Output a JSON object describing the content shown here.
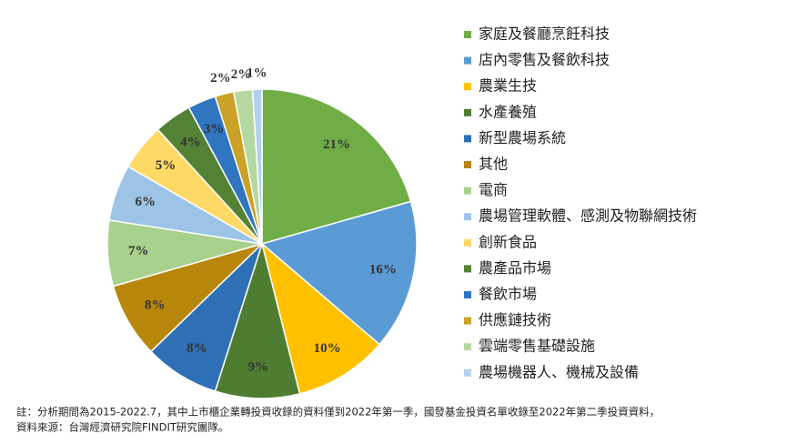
{
  "chart_data": {
    "type": "pie",
    "categories": [
      "家庭及餐廳烹飪科技",
      "店內零售及餐飲科技",
      "農業生技",
      "水產養殖",
      "新型農場系統",
      "其他",
      "電商",
      "農場管理軟體、感測及物聯網技術",
      "創新食品",
      "農產品市場",
      "餐飲市場",
      "供應鏈技術",
      "雲端零售基礎設施",
      "農場機器人、機械及設備"
    ],
    "values": [
      21,
      16,
      10,
      9,
      8,
      8,
      7,
      6,
      5,
      4,
      3,
      2,
      2,
      1
    ],
    "value_labels": [
      "21%",
      "16%",
      "10%",
      "9%",
      "8%",
      "8%",
      "7%",
      "6%",
      "5%",
      "4%",
      "3%",
      "2%",
      "2%",
      "1%"
    ],
    "colors": [
      "#70ad47",
      "#5b9bd5",
      "#ffc000",
      "#4e7d31",
      "#2e6fb5",
      "#b8860b",
      "#a9d18e",
      "#9dc3e6",
      "#ffd966",
      "#548235",
      "#2f75c0",
      "#c9a227",
      "#b5d8a0",
      "#b4d0ec"
    ],
    "legend": "right",
    "notes": [
      "註：分析期間為2015-2022.7，其中上市櫃企業轉投資收錄的資料僅到2022年第一季，國發基金投資名單收錄至2022年第二季投資資料，",
      "資料來源：台灣經濟研究院FINDIT研究團隊。"
    ]
  }
}
